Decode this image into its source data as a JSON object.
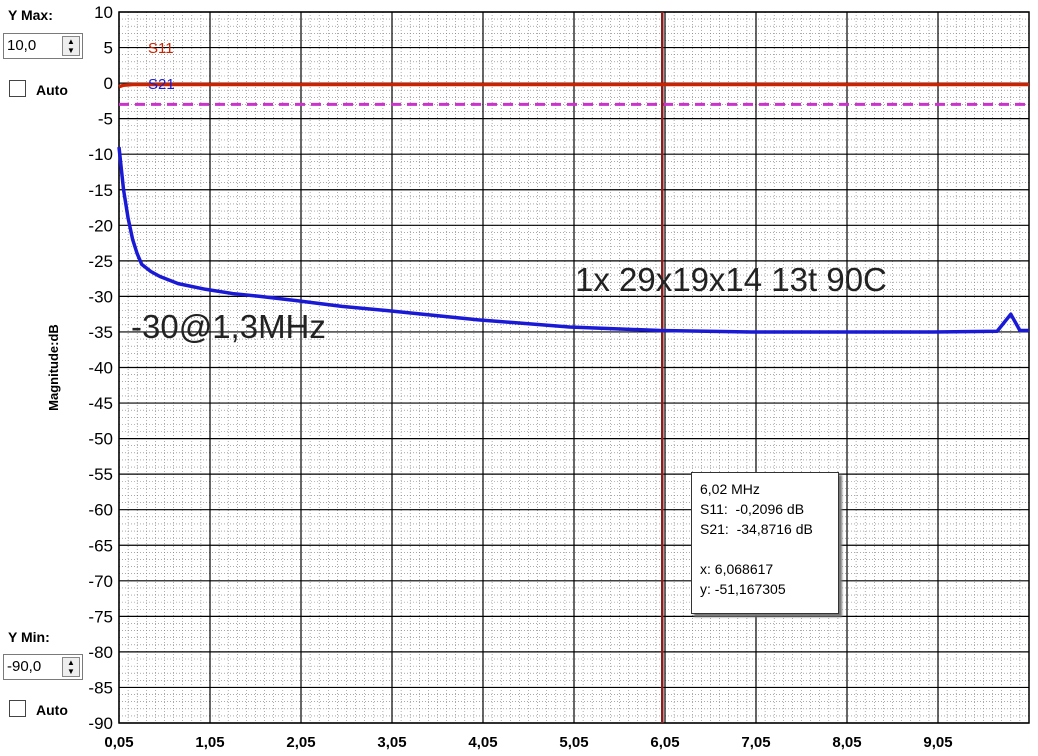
{
  "controls": {
    "ymax_label": "Y Max:",
    "ymax_value": "10,0",
    "ymin_label": "Y Min:",
    "ymin_value": "-90,0",
    "auto_label": "Auto"
  },
  "tooltip": {
    "freq": "6,02 MHz",
    "s11": "S11:  -0,2096 dB",
    "s21": "S21:  -34,8716 dB",
    "x": "x: 6,068617",
    "y": "y: -51,167305"
  },
  "colors": {
    "s11": "#cc2200",
    "s21": "#1a1ad6",
    "marker": "#8b1a1a",
    "ref": "#cc33cc"
  },
  "chart_data": {
    "type": "line",
    "ylabel": "Magnitude:dB",
    "xlabel": "",
    "xlim": [
      0.05,
      10.05
    ],
    "ylim": [
      -90,
      10
    ],
    "x_ticks": [
      "0,05",
      "1,05",
      "2,05",
      "3,05",
      "4,05",
      "5,05",
      "6,05",
      "7,05",
      "8,05",
      "9,05"
    ],
    "x_tick_values": [
      0.05,
      1.05,
      2.05,
      3.05,
      4.05,
      5.05,
      6.05,
      7.05,
      8.05,
      9.05
    ],
    "y_ticks": [
      "10",
      "5",
      "0",
      "-5",
      "-10",
      "-15",
      "-20",
      "-25",
      "-30",
      "-35",
      "-40",
      "-45",
      "-50",
      "-55",
      "-60",
      "-65",
      "-70",
      "-75",
      "-80",
      "-85",
      "-90"
    ],
    "y_tick_values": [
      10,
      5,
      0,
      -5,
      -10,
      -15,
      -20,
      -25,
      -30,
      -35,
      -40,
      -45,
      -50,
      -55,
      -60,
      -65,
      -70,
      -75,
      -80,
      -85,
      -90
    ],
    "grid": true,
    "marker_x": 6.02,
    "ref_line_y": -3,
    "annotations": [
      "1x 29x19x14 13t  90C",
      "-30@1,3MHz"
    ],
    "series": [
      {
        "name": "S11",
        "x": [
          0.05,
          0.1,
          0.2,
          1,
          3,
          6,
          9,
          10.05
        ],
        "y": [
          -0.5,
          -0.3,
          -0.2,
          -0.2,
          -0.2,
          -0.2,
          -0.2,
          -0.2
        ]
      },
      {
        "name": "S21",
        "x": [
          0.05,
          0.1,
          0.15,
          0.2,
          0.25,
          0.3,
          0.4,
          0.5,
          0.7,
          1.0,
          1.3,
          1.6,
          2.0,
          2.5,
          3.0,
          4.0,
          5.0,
          6.0,
          7.0,
          8.0,
          9.0,
          9.7,
          9.85,
          9.95,
          10.05
        ],
        "y": [
          -9,
          -15,
          -19,
          -22,
          -24,
          -25.5,
          -26.5,
          -27.2,
          -28.2,
          -29.0,
          -29.6,
          -30.0,
          -30.6,
          -31.4,
          -32.0,
          -33.3,
          -34.3,
          -34.8,
          -35.0,
          -35.0,
          -35.0,
          -34.9,
          -32.5,
          -34.8,
          -34.8
        ]
      }
    ]
  }
}
